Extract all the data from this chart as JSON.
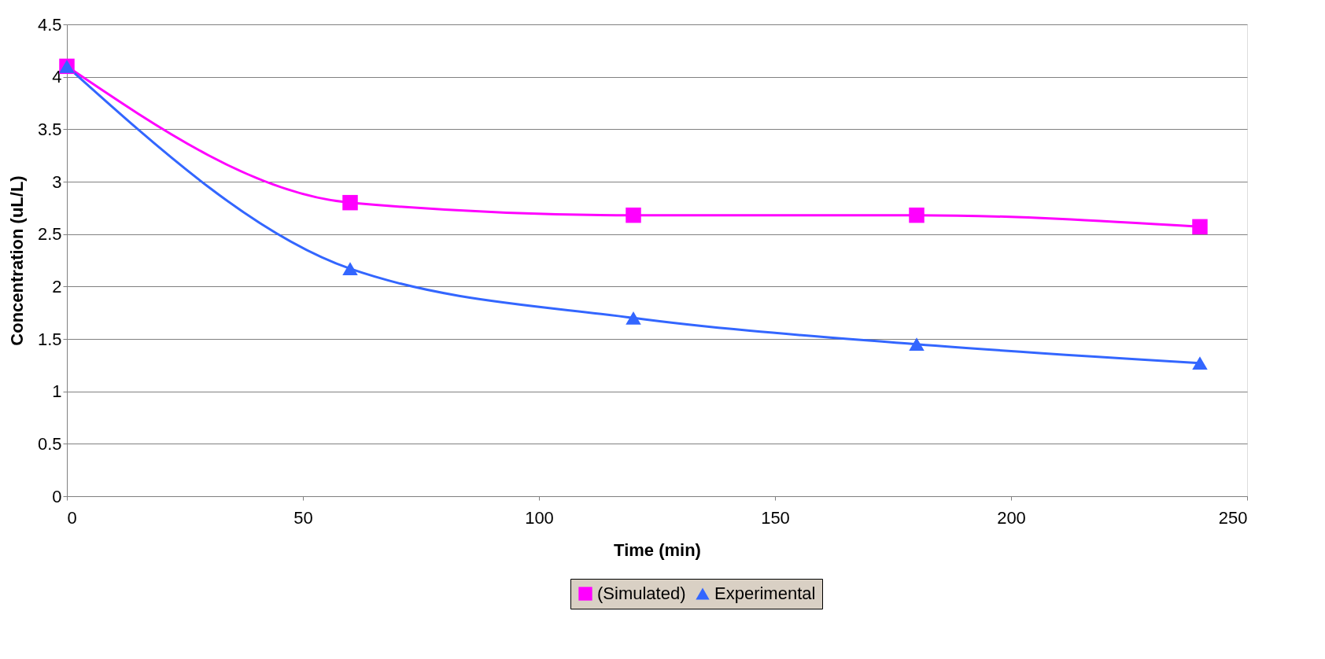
{
  "chart_data": {
    "type": "line",
    "xlabel": "Time (min)",
    "ylabel": "Concentration (uL/L)",
    "x": [
      0,
      60,
      120,
      180,
      240
    ],
    "series": [
      {
        "name": "(Simulated)",
        "color": "#ff00ff",
        "marker": "square",
        "values": [
          4.1,
          2.8,
          2.68,
          2.68,
          2.57
        ]
      },
      {
        "name": "Experimental",
        "color": "#3366ff",
        "marker": "triangle",
        "values": [
          4.1,
          2.17,
          1.7,
          1.45,
          1.27
        ]
      }
    ],
    "xlim": [
      0,
      250
    ],
    "xticks": [
      0,
      50,
      100,
      150,
      200,
      250
    ],
    "ylim": [
      0,
      4.5
    ],
    "yticks": [
      0,
      0.5,
      1,
      1.5,
      2,
      2.5,
      3,
      3.5,
      4,
      4.5
    ],
    "grid": "y",
    "legend": "bottom",
    "line_style": "solid"
  }
}
